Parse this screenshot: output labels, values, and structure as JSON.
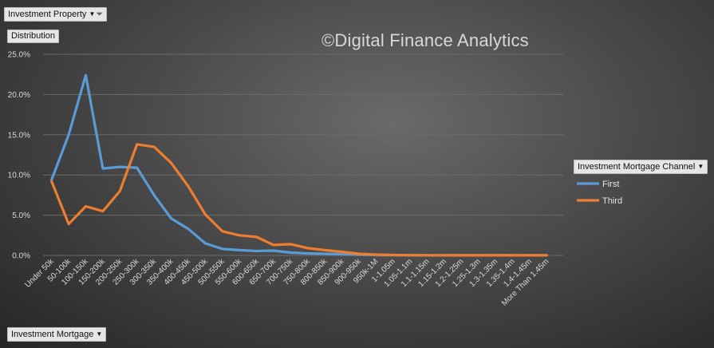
{
  "filter": {
    "label": "Investment Property",
    "icon": "filter-dropdown-icon"
  },
  "field": {
    "label": "Distribution"
  },
  "axis_field": {
    "label": "Investment Mortgage"
  },
  "legend_field": {
    "label": "Investment Mortgage Channel"
  },
  "watermark": "©Digital Finance Analytics",
  "colors": {
    "first": "#5b9bd5",
    "third": "#ed7d31",
    "grid": "#6a6a6a"
  },
  "chart_data": {
    "type": "line",
    "categories": [
      "Under 50k",
      "50-100k",
      "100-150k",
      "150-200k",
      "200-250k",
      "250-300k",
      "300-350k",
      "350-400k",
      "400-450k",
      "450-500k",
      "500-550k",
      "550-600k",
      "600-650k",
      "650-700k",
      "700-750k",
      "750-800k",
      "800-850k",
      "850-900k",
      "900-950k",
      "950k-1M",
      "1-1.05m",
      "1.05-1.1m",
      "1.1-1.15m",
      "1.15-1.2m",
      "1.2-1.25m",
      "1.25-1.3m",
      "1.3-1.35m",
      "1.35-1.4m",
      "1.4-1.45m",
      "More Than 1.45m"
    ],
    "yticks": [
      "0.0%",
      "5.0%",
      "10.0%",
      "15.0%",
      "20.0%",
      "25.0%"
    ],
    "ylim": [
      0,
      25
    ],
    "legend_position": "right",
    "grid": true,
    "series": [
      {
        "name": "First",
        "values": [
          9.4,
          15.0,
          22.4,
          10.8,
          11.0,
          10.9,
          7.5,
          4.6,
          3.3,
          1.5,
          0.8,
          0.65,
          0.55,
          0.6,
          0.35,
          0.25,
          0.2,
          0.15,
          0.1,
          0.05,
          0.03,
          0.02,
          0.02,
          0.01,
          0.01,
          0.01,
          0.01,
          0.01,
          0.01,
          0.01
        ]
      },
      {
        "name": "Third",
        "values": [
          9.2,
          3.9,
          6.1,
          5.5,
          8.0,
          13.8,
          13.5,
          11.5,
          8.6,
          5.1,
          3.0,
          2.5,
          2.3,
          1.3,
          1.4,
          0.9,
          0.65,
          0.45,
          0.2,
          0.1,
          0.05,
          0.03,
          0.02,
          0.02,
          0.01,
          0.01,
          0.01,
          0.01,
          0.01,
          0.01
        ]
      }
    ]
  }
}
